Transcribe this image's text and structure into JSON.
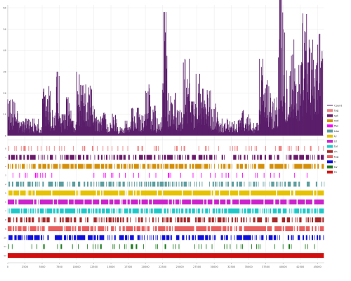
{
  "chart_data": {
    "type": "area",
    "grid": true,
    "legend_position": "right",
    "top_panel": {
      "series_name": "Count",
      "color": "#5a1e6a",
      "y_ticks": [
        0,
        10,
        20,
        30,
        40,
        50,
        60
      ],
      "ylim": [
        0,
        60
      ],
      "segments": [
        [
          0,
          1500,
          17
        ],
        [
          1500,
          4500,
          8
        ],
        [
          4500,
          5000,
          4
        ],
        [
          5000,
          5800,
          22
        ],
        [
          5800,
          6200,
          25
        ],
        [
          6200,
          7000,
          12
        ],
        [
          7000,
          7500,
          30
        ],
        [
          7500,
          8500,
          10
        ],
        [
          8500,
          9200,
          18
        ],
        [
          9200,
          10000,
          7
        ],
        [
          10000,
          10500,
          30
        ],
        [
          10500,
          11500,
          24
        ],
        [
          11500,
          12200,
          27
        ],
        [
          12200,
          12800,
          14
        ],
        [
          12800,
          13800,
          9
        ],
        [
          13800,
          14300,
          18
        ],
        [
          14300,
          15200,
          6
        ],
        [
          15200,
          16000,
          11
        ],
        [
          16000,
          17000,
          4
        ],
        [
          17000,
          18000,
          7
        ],
        [
          18000,
          19000,
          13
        ],
        [
          19000,
          20000,
          10
        ],
        [
          20000,
          20700,
          24
        ],
        [
          20700,
          21500,
          14
        ],
        [
          21500,
          22500,
          9
        ],
        [
          22500,
          23200,
          58
        ],
        [
          23200,
          24500,
          20
        ],
        [
          24500,
          25500,
          12
        ],
        [
          25500,
          26500,
          36
        ],
        [
          26500,
          27300,
          16
        ],
        [
          27300,
          28200,
          29
        ],
        [
          28200,
          29500,
          22
        ],
        [
          29500,
          30500,
          15
        ],
        [
          30500,
          32000,
          8
        ],
        [
          32000,
          33500,
          7
        ],
        [
          33500,
          34500,
          12
        ],
        [
          34500,
          35500,
          10
        ],
        [
          35500,
          36500,
          6
        ],
        [
          36500,
          37300,
          36
        ],
        [
          37300,
          38300,
          26
        ],
        [
          38300,
          39300,
          18
        ],
        [
          39300,
          40300,
          66
        ],
        [
          40300,
          41100,
          40
        ],
        [
          41100,
          41800,
          49
        ],
        [
          41800,
          42800,
          39
        ],
        [
          42800,
          43500,
          60
        ],
        [
          43500,
          44500,
          45
        ],
        [
          44500,
          45800,
          48
        ]
      ]
    },
    "x_ticks": [
      0,
      2500,
      5000,
      7500,
      10000,
      12500,
      15000,
      17500,
      20000,
      22500,
      25000,
      27500,
      30000,
      32500,
      35000,
      37500,
      40000,
      42500,
      45000
    ],
    "xlim": [
      0,
      46000
    ],
    "bottom_panel": {
      "tracks": [
        {
          "name": "tag",
          "color": "#f08080",
          "density": 0.2,
          "seed": 3
        },
        {
          "name": "syt",
          "color": "#6a1b6a",
          "density": 0.5,
          "seed": 7
        },
        {
          "name": "rpd",
          "color": "#d4900a",
          "density": 0.75,
          "seed": 11
        },
        {
          "name": "ftw",
          "color": "#ff00ff",
          "density": 0.1,
          "seed": 13
        },
        {
          "name": "tdw",
          "color": "#5f9ea0",
          "density": 0.45,
          "seed": 17
        },
        {
          "name": "ty",
          "color": "#e6c200",
          "density": 0.9,
          "seed": 19
        },
        {
          "name": "tif",
          "color": "#cc22cc",
          "density": 0.85,
          "seed": 23
        },
        {
          "name": "tal",
          "color": "#20c9c9",
          "density": 0.7,
          "seed": 29
        },
        {
          "name": "ch",
          "color": "#a52a2a",
          "density": 0.55,
          "seed": 31
        },
        {
          "name": "tag",
          "color": "#e86060",
          "density": 0.8,
          "seed": 37
        },
        {
          "name": "tr",
          "color": "#1010dd",
          "density": 0.6,
          "seed": 41
        },
        {
          "name": "tw",
          "color": "#1e7a1e",
          "density": 0.15,
          "seed": 43
        },
        {
          "name": "tn",
          "color": "#d01010",
          "density": 1.0,
          "seed": 47
        }
      ]
    }
  }
}
